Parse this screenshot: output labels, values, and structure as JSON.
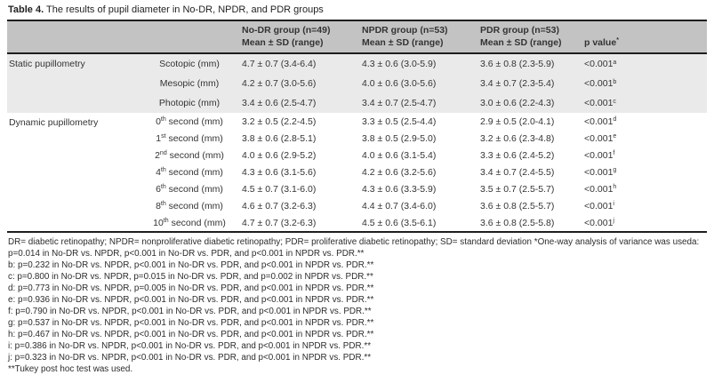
{
  "colors": {
    "header_bg": "#c3c3c3",
    "shaded_section_bg": "#eaeaea",
    "rule": "#1e1e1e",
    "text": "#333333"
  },
  "caption": {
    "label": "Table 4.",
    "text": "The results of pupil diameter in No-DR, NPDR, and PDR groups"
  },
  "table": {
    "columns": [
      {
        "line1": "No-DR group (n=49)",
        "line2": "Mean ± SD (range)"
      },
      {
        "line1": "NPDR group (n=53)",
        "line2": "Mean ± SD (range)"
      },
      {
        "line1": "PDR group (n=53)",
        "line2": "Mean ± SD (range)"
      },
      {
        "line2": "p value",
        "sup": "*"
      }
    ],
    "sections": [
      {
        "name": "Static pupillometry",
        "rows": [
          {
            "label_main": "Scotopic (mm)",
            "label_sup": "",
            "label_tail": "",
            "no_dr": "4.7 ± 0.7 (3.4-6.4)",
            "npdr": "4.3 ± 0.6 (3.0-5.9)",
            "pdr": "3.6 ± 0.8 (2.3-5.9)",
            "p": "<0.001",
            "p_sup": "a"
          },
          {
            "label_main": "Mesopic (mm)",
            "label_sup": "",
            "label_tail": "",
            "no_dr": "4.2 ± 0.7 (3.0-5.6)",
            "npdr": "4.0 ± 0.6 (3.0-5.6)",
            "pdr": "3.4 ± 0.7 (2.3-5.4)",
            "p": "<0.001",
            "p_sup": "b"
          },
          {
            "label_main": "Photopic (mm)",
            "label_sup": "",
            "label_tail": "",
            "no_dr": "3.4 ± 0.6 (2.5-4.7)",
            "npdr": "3.4 ± 0.7 (2.5-4.7)",
            "pdr": "3.0 ± 0.6 (2.2-4.3)",
            "p": "<0.001",
            "p_sup": "c"
          }
        ]
      },
      {
        "name": "Dynamic pupillometry",
        "rows": [
          {
            "label_main": "0",
            "label_sup": "th",
            "label_tail": " second (mm)",
            "no_dr": "3.2 ± 0.5 (2.2-4.5)",
            "npdr": "3.3 ± 0.5 (2.5-4.4)",
            "pdr": "2.9 ± 0.5 (2.0-4.1)",
            "p": "<0.001",
            "p_sup": "d"
          },
          {
            "label_main": "1",
            "label_sup": "st",
            "label_tail": " second (mm)",
            "no_dr": "3.8 ± 0.6 (2.8-5.1)",
            "npdr": "3.8 ± 0.5 (2.9-5.0)",
            "pdr": "3.2 ± 0.6 (2.3-4.8)",
            "p": "<0.001",
            "p_sup": "e"
          },
          {
            "label_main": "2",
            "label_sup": "nd",
            "label_tail": " second (mm)",
            "no_dr": "4.0 ± 0.6 (2.9-5.2)",
            "npdr": "4.0 ± 0.6 (3.1-5.4)",
            "pdr": "3.3 ± 0.6 (2.4-5.2)",
            "p": "<0.001",
            "p_sup": "f"
          },
          {
            "label_main": "4",
            "label_sup": "th",
            "label_tail": " second (mm)",
            "no_dr": "4.3 ± 0.6 (3.1-5.6)",
            "npdr": "4.2 ± 0.6 (3.2-5.6)",
            "pdr": "3.4 ± 0.7 (2.4-5.5)",
            "p": "<0.001",
            "p_sup": "g"
          },
          {
            "label_main": "6",
            "label_sup": "th",
            "label_tail": " second (mm)",
            "no_dr": "4.5 ± 0.7 (3.1-6.0)",
            "npdr": "4.3 ± 0.6 (3.3-5.9)",
            "pdr": "3.5 ± 0.7 (2.5-5.7)",
            "p": "<0.001",
            "p_sup": "h"
          },
          {
            "label_main": "8",
            "label_sup": "th",
            "label_tail": " second (mm)",
            "no_dr": "4.6 ± 0.7 (3.2-6.3)",
            "npdr": "4.4 ± 0.7 (3.4-6.0)",
            "pdr": "3.6 ± 0.8 (2.5-5.7)",
            "p": "<0.001",
            "p_sup": "i"
          },
          {
            "label_main": "10",
            "label_sup": "th",
            "label_tail": " second (mm)",
            "no_dr": "4.7 ± 0.7 (3.2-6.3)",
            "npdr": "4.5 ± 0.6 (3.5-6.1)",
            "pdr": "3.6 ± 0.8 (2.5-5.8)",
            "p": "<0.001",
            "p_sup": "j"
          }
        ]
      }
    ]
  },
  "footnotes": [
    "DR= diabetic retinopathy; NPDR= nonproliferative diabetic retinopathy; PDR= proliferative diabetic retinopathy; SD= standard deviation *One-way analysis of variance was useda:",
    "p=0.014 in No-DR vs. NPDR, p<0.001 in No-DR vs. PDR, and p<0.001 in NPDR vs. PDR.**",
    "b: p=0.232 in No-DR vs. NPDR, p<0.001 in No-DR vs. PDR, and p<0.001 in NPDR vs. PDR.**",
    "c: p=0.800 in No-DR vs. NPDR, p=0.015 in No-DR vs. PDR, and p=0.002 in NPDR vs. PDR.**",
    "d: p=0.773 in No-DR vs. NPDR, p=0.005 in No-DR vs. PDR, and p<0.001 in NPDR vs. PDR.**",
    "e: p=0.936 in No-DR vs. NPDR, p<0.001 in No-DR vs. PDR, and p<0.001 in NPDR vs. PDR.**",
    "f: p=0.790 in No-DR vs. NPDR, p<0.001 in No-DR vs. PDR, and p<0.001 in NPDR vs. PDR.**",
    "g: p=0.537 in No-DR vs. NPDR, p<0.001 in No-DR vs. PDR, and p<0.001 in NPDR vs. PDR.**",
    "h: p=0.467 in No-DR vs. NPDR, p<0.001 in No-DR vs. PDR, and p<0.001 in NPDR vs. PDR.**",
    "i: p=0.386 in No-DR vs. NPDR, p<0.001 in No-DR vs. PDR, and p<0.001 in NPDR vs. PDR.**",
    "j: p=0.323 in No-DR vs. NPDR, p<0.001 in No-DR vs. PDR, and p<0.001 in NPDR vs. PDR.**",
    "**Tukey post hoc test was used."
  ]
}
